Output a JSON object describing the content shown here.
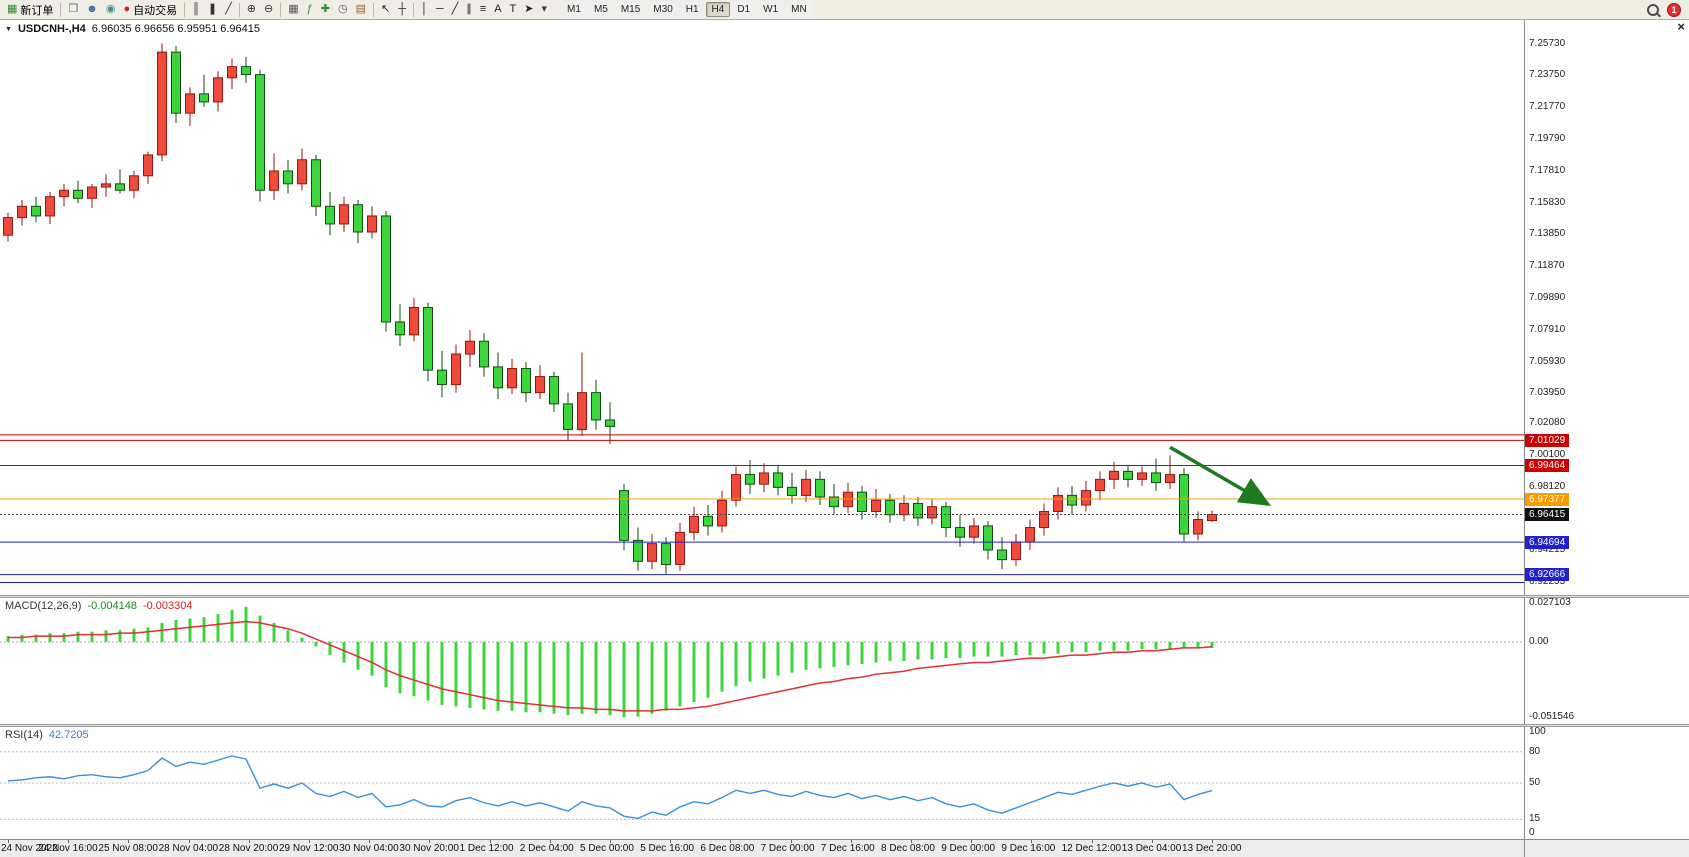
{
  "toolbar": {
    "items": [
      {
        "name": "new-order-button",
        "icon": "new-order-icon",
        "glyph": "▦",
        "color": "#2e8b2e",
        "label": "新订单"
      },
      {
        "type": "sep"
      },
      {
        "name": "chart-window-button",
        "icon": "chart-window-icon",
        "glyph": "❐",
        "color": "#4a6fa5"
      },
      {
        "name": "profiles-button",
        "icon": "profiles-icon",
        "glyph": "☻",
        "color": "#3a6ea5"
      },
      {
        "name": "data-window-button",
        "icon": "data-window-icon",
        "glyph": "◉",
        "color": "#3a8e8e"
      },
      {
        "name": "auto-trading-button",
        "icon": "auto-trading-icon",
        "glyph": "●",
        "color": "#cc2222",
        "label": "自动交易"
      },
      {
        "type": "sep"
      },
      {
        "name": "bar-chart-button",
        "icon": "bar-chart-icon",
        "glyph": "║",
        "color": "#333333"
      },
      {
        "name": "candlestick-chart-button",
        "icon": "candlestick-chart-icon",
        "glyph": "❚",
        "color": "#333333"
      },
      {
        "name": "line-chart-button",
        "icon": "line-chart-icon",
        "glyph": "╱",
        "color": "#333333"
      },
      {
        "type": "sep"
      },
      {
        "name": "zoom-in-button",
        "icon": "zoom-in-icon",
        "glyph": "⊕",
        "color": "#333333"
      },
      {
        "name": "zoom-out-button",
        "icon": "zoom-out-icon",
        "glyph": "⊖",
        "color": "#333333"
      },
      {
        "type": "sep"
      },
      {
        "name": "tile-windows-button",
        "icon": "tile-windows-icon",
        "glyph": "▦",
        "color": "#555555"
      },
      {
        "name": "indicators-button",
        "icon": "indicators-icon",
        "glyph": "ƒ",
        "color": "#2e8b2e"
      },
      {
        "name": "add-indicator-button",
        "icon": "add-indicator-icon",
        "glyph": "✚",
        "color": "#2e8b2e"
      },
      {
        "name": "periods-button",
        "icon": "periods-icon",
        "glyph": "◷",
        "color": "#555555"
      },
      {
        "name": "templates-button",
        "icon": "templates-icon",
        "glyph": "▤",
        "color": "#996633"
      },
      {
        "type": "sep"
      },
      {
        "name": "cursor-button",
        "icon": "cursor-icon",
        "glyph": "↖",
        "color": "#222222"
      },
      {
        "name": "crosshair-button",
        "icon": "crosshair-icon",
        "glyph": "┼",
        "color": "#222222"
      },
      {
        "type": "sep"
      },
      {
        "name": "vertical-line-button",
        "icon": "vertical-line-icon",
        "glyph": "│",
        "color": "#222222"
      },
      {
        "name": "horizontal-line-button",
        "icon": "horizontal-line-icon",
        "glyph": "─",
        "color": "#222222"
      },
      {
        "name": "trendline-button",
        "icon": "trendline-icon",
        "glyph": "╱",
        "color": "#222222"
      },
      {
        "name": "channel-button",
        "icon": "channel-icon",
        "glyph": "∥",
        "color": "#222222"
      },
      {
        "name": "fibonacci-button",
        "icon": "fibonacci-icon",
        "glyph": "≡",
        "color": "#222222"
      },
      {
        "name": "text-button",
        "icon": "text-icon",
        "glyph": "A",
        "color": "#222222"
      },
      {
        "name": "text-label-button",
        "icon": "text-label-icon",
        "glyph": "T",
        "color": "#222222"
      },
      {
        "name": "arrows-tool-button",
        "icon": "arrows-tool-icon",
        "glyph": "➤",
        "color": "#222222"
      },
      {
        "name": "objects-dropdown-button",
        "icon": "chevron-down-icon",
        "glyph": "▾",
        "color": "#444444"
      }
    ],
    "timeframes": [
      "M1",
      "M5",
      "M15",
      "M30",
      "H1",
      "H4",
      "D1",
      "W1",
      "MN"
    ],
    "active_timeframe": "H4",
    "notification_count": "1"
  },
  "chart": {
    "title_symbol": "USDCNH-,H4",
    "title_ohlc": "6.96035 6.96656 6.95951 6.96415",
    "dropdown_glyph": "▼",
    "close_glyph": "×"
  },
  "chart_data": {
    "type": "candlestick",
    "symbol": "USDCNH-",
    "period": "H4",
    "ohlc_display": {
      "open": "6.96035",
      "high": "6.96656",
      "low": "6.95951",
      "close": "6.96415"
    },
    "up_color": "#ef4a3c",
    "down_color": "#3cd63c",
    "price_axis": {
      "min": 6.914,
      "max": 7.272,
      "ticks": [
        7.2573,
        7.2375,
        7.2177,
        7.1979,
        7.1781,
        7.1583,
        7.1385,
        7.1187,
        7.0989,
        7.0791,
        7.0593,
        7.0395,
        7.0208,
        7.001,
        6.9812,
        6.94215,
        6.92235
      ]
    },
    "levels": [
      {
        "price": 7.0137,
        "color": "#cc0000",
        "label": null
      },
      {
        "price": 7.01029,
        "color": "#cc0000",
        "label": "7.01029"
      },
      {
        "price": 6.99464,
        "color": "#cc0000",
        "label": "6.99464"
      },
      {
        "price": 6.97377,
        "color": "#ff9900",
        "label": "6.97377"
      },
      {
        "price": 6.94694,
        "color": "#2222cc",
        "label": "6.94694"
      },
      {
        "price": 6.92666,
        "color": "#2222cc",
        "label": "6.92666"
      },
      {
        "price": 6.9218,
        "color": "#2222cc",
        "label": null
      }
    ],
    "current_price": {
      "value": 6.96415,
      "label": "6.96415",
      "bg": "#111111"
    },
    "arrow": {
      "from_index": 83,
      "from_price": 7.006,
      "to_index": 90,
      "to_price": 6.9705,
      "color": "#1e7a1e"
    },
    "time_labels": [
      "24 Nov 2022",
      "24 Nov 16:00",
      "25 Nov 08:00",
      "28 Nov 04:00",
      "28 Nov 20:00",
      "29 Nov 12:00",
      "30 Nov 04:00",
      "30 Nov 20:00",
      "1 Dec 12:00",
      "2 Dec 04:00",
      "5 Dec 00:00",
      "5 Dec 16:00",
      "6 Dec 08:00",
      "7 Dec 00:00",
      "7 Dec 16:00",
      "8 Dec 08:00",
      "9 Dec 00:00",
      "9 Dec 16:00",
      "12 Dec 12:00",
      "13 Dec 04:00",
      "13 Dec 20:00"
    ],
    "candles": [
      [
        7.138,
        7.152,
        7.134,
        7.149
      ],
      [
        7.149,
        7.16,
        7.144,
        7.156
      ],
      [
        7.156,
        7.162,
        7.146,
        7.15
      ],
      [
        7.15,
        7.165,
        7.145,
        7.162
      ],
      [
        7.162,
        7.17,
        7.156,
        7.166
      ],
      [
        7.166,
        7.172,
        7.158,
        7.161
      ],
      [
        7.161,
        7.17,
        7.155,
        7.168
      ],
      [
        7.168,
        7.176,
        7.162,
        7.17
      ],
      [
        7.17,
        7.179,
        7.164,
        7.166
      ],
      [
        7.166,
        7.178,
        7.161,
        7.175
      ],
      [
        7.175,
        7.19,
        7.17,
        7.188
      ],
      [
        7.188,
        7.2573,
        7.184,
        7.252
      ],
      [
        7.252,
        7.256,
        7.208,
        7.214
      ],
      [
        7.214,
        7.23,
        7.206,
        7.226
      ],
      [
        7.226,
        7.238,
        7.218,
        7.221
      ],
      [
        7.221,
        7.24,
        7.215,
        7.236
      ],
      [
        7.236,
        7.248,
        7.229,
        7.243
      ],
      [
        7.243,
        7.249,
        7.233,
        7.238
      ],
      [
        7.238,
        7.241,
        7.159,
        7.166
      ],
      [
        7.166,
        7.189,
        7.16,
        7.178
      ],
      [
        7.178,
        7.185,
        7.164,
        7.17
      ],
      [
        7.17,
        7.192,
        7.166,
        7.185
      ],
      [
        7.185,
        7.188,
        7.15,
        7.156
      ],
      [
        7.156,
        7.165,
        7.138,
        7.145
      ],
      [
        7.145,
        7.162,
        7.14,
        7.157
      ],
      [
        7.157,
        7.16,
        7.133,
        7.14
      ],
      [
        7.14,
        7.156,
        7.136,
        7.15
      ],
      [
        7.15,
        7.153,
        7.078,
        7.084
      ],
      [
        7.084,
        7.095,
        7.069,
        7.076
      ],
      [
        7.076,
        7.099,
        7.072,
        7.093
      ],
      [
        7.093,
        7.096,
        7.047,
        7.054
      ],
      [
        7.054,
        7.066,
        7.037,
        7.045
      ],
      [
        7.045,
        7.07,
        7.04,
        7.064
      ],
      [
        7.064,
        7.079,
        7.056,
        7.072
      ],
      [
        7.072,
        7.077,
        7.05,
        7.056
      ],
      [
        7.056,
        7.065,
        7.036,
        7.043
      ],
      [
        7.043,
        7.061,
        7.039,
        7.055
      ],
      [
        7.055,
        7.059,
        7.034,
        7.04
      ],
      [
        7.04,
        7.057,
        7.036,
        7.05
      ],
      [
        7.05,
        7.053,
        7.028,
        7.033
      ],
      [
        7.033,
        7.04,
        7.01,
        7.017
      ],
      [
        7.017,
        7.065,
        7.013,
        7.04
      ],
      [
        7.04,
        7.048,
        7.017,
        7.023
      ],
      [
        7.023,
        7.034,
        7.008,
        7.019
      ],
      [
        6.979,
        6.983,
        6.942,
        6.948
      ],
      [
        6.948,
        6.956,
        6.929,
        6.935
      ],
      [
        6.935,
        6.952,
        6.93,
        6.946
      ],
      [
        6.946,
        6.95,
        6.927,
        6.933
      ],
      [
        6.933,
        6.959,
        6.929,
        6.953
      ],
      [
        6.953,
        6.969,
        6.948,
        6.963
      ],
      [
        6.963,
        6.97,
        6.951,
        6.957
      ],
      [
        6.957,
        6.979,
        6.953,
        6.973
      ],
      [
        6.973,
        6.994,
        6.969,
        6.989
      ],
      [
        6.989,
        6.998,
        6.977,
        6.983
      ],
      [
        6.983,
        6.996,
        6.978,
        6.99
      ],
      [
        6.99,
        6.995,
        6.976,
        6.981
      ],
      [
        6.981,
        6.99,
        6.971,
        6.976
      ],
      [
        6.976,
        6.992,
        6.972,
        6.986
      ],
      [
        6.986,
        6.991,
        6.97,
        6.975
      ],
      [
        6.975,
        6.983,
        6.964,
        6.969
      ],
      [
        6.969,
        6.984,
        6.965,
        6.978
      ],
      [
        6.978,
        6.982,
        6.961,
        6.966
      ],
      [
        6.966,
        6.98,
        6.962,
        6.973
      ],
      [
        6.973,
        6.977,
        6.959,
        6.964
      ],
      [
        6.964,
        6.976,
        6.96,
        6.971
      ],
      [
        6.971,
        6.975,
        6.957,
        6.962
      ],
      [
        6.962,
        6.974,
        6.958,
        6.969
      ],
      [
        6.969,
        6.972,
        6.95,
        6.956
      ],
      [
        6.956,
        6.964,
        6.944,
        6.95
      ],
      [
        6.95,
        6.962,
        6.946,
        6.957
      ],
      [
        6.957,
        6.96,
        6.936,
        6.942
      ],
      [
        6.942,
        6.95,
        6.93,
        6.936
      ],
      [
        6.936,
        6.952,
        6.932,
        6.947
      ],
      [
        6.947,
        6.961,
        6.942,
        6.956
      ],
      [
        6.956,
        6.971,
        6.951,
        6.966
      ],
      [
        6.966,
        6.981,
        6.961,
        6.976
      ],
      [
        6.976,
        6.982,
        6.964,
        6.97
      ],
      [
        6.97,
        6.985,
        6.966,
        6.979
      ],
      [
        6.979,
        6.991,
        6.973,
        6.986
      ],
      [
        6.986,
        6.997,
        6.98,
        6.991
      ],
      [
        6.991,
        6.995,
        6.981,
        6.986
      ],
      [
        6.986,
        6.994,
        6.982,
        6.99
      ],
      [
        6.99,
        6.999,
        6.979,
        6.984
      ],
      [
        6.984,
        7.001,
        6.98,
        6.989
      ],
      [
        6.989,
        6.993,
        6.947,
        6.952
      ],
      [
        6.952,
        6.966,
        6.948,
        6.961
      ],
      [
        6.96035,
        6.96656,
        6.95951,
        6.96415
      ]
    ],
    "macd": {
      "label": "MACD(12,26,9)",
      "value_main": "-0.004148",
      "value_signal": "-0.003304",
      "histogram_color": "#3cd63c",
      "signal_color": "#e03030",
      "axis": {
        "max": 0.03,
        "min": -0.056,
        "ticks": [
          {
            "v": 0.027103,
            "t": "0.027103"
          },
          {
            "v": 0,
            "t": "0.00"
          },
          {
            "v": -0.051546,
            "t": "-0.051546"
          }
        ]
      },
      "histogram": [
        0.004,
        0.005,
        0.005,
        0.006,
        0.006,
        0.007,
        0.007,
        0.008,
        0.008,
        0.009,
        0.01,
        0.013,
        0.015,
        0.016,
        0.017,
        0.019,
        0.022,
        0.024,
        0.018,
        0.013,
        0.008,
        0.003,
        -0.003,
        -0.009,
        -0.014,
        -0.019,
        -0.023,
        -0.031,
        -0.035,
        -0.037,
        -0.04,
        -0.043,
        -0.044,
        -0.045,
        -0.046,
        -0.047,
        -0.047,
        -0.048,
        -0.048,
        -0.049,
        -0.05,
        -0.049,
        -0.049,
        -0.05,
        -0.0515,
        -0.051,
        -0.049,
        -0.047,
        -0.044,
        -0.041,
        -0.038,
        -0.034,
        -0.03,
        -0.027,
        -0.025,
        -0.023,
        -0.021,
        -0.019,
        -0.018,
        -0.017,
        -0.016,
        -0.015,
        -0.014,
        -0.013,
        -0.013,
        -0.012,
        -0.012,
        -0.011,
        -0.011,
        -0.01,
        -0.01,
        -0.01,
        -0.009,
        -0.009,
        -0.008,
        -0.008,
        -0.007,
        -0.007,
        -0.006,
        -0.006,
        -0.006,
        -0.005,
        -0.005,
        -0.005,
        -0.004,
        -0.004,
        -0.004148
      ],
      "signal": [
        0.003,
        0.003,
        0.004,
        0.004,
        0.004,
        0.005,
        0.005,
        0.005,
        0.006,
        0.006,
        0.007,
        0.008,
        0.009,
        0.01,
        0.011,
        0.012,
        0.013,
        0.014,
        0.013,
        0.011,
        0.009,
        0.006,
        0.002,
        -0.002,
        -0.006,
        -0.01,
        -0.014,
        -0.019,
        -0.023,
        -0.026,
        -0.029,
        -0.032,
        -0.034,
        -0.036,
        -0.038,
        -0.04,
        -0.041,
        -0.042,
        -0.043,
        -0.044,
        -0.045,
        -0.045,
        -0.046,
        -0.046,
        -0.047,
        -0.047,
        -0.047,
        -0.046,
        -0.046,
        -0.045,
        -0.044,
        -0.042,
        -0.04,
        -0.038,
        -0.036,
        -0.034,
        -0.032,
        -0.03,
        -0.028,
        -0.027,
        -0.025,
        -0.024,
        -0.022,
        -0.021,
        -0.02,
        -0.018,
        -0.017,
        -0.016,
        -0.015,
        -0.014,
        -0.014,
        -0.013,
        -0.012,
        -0.011,
        -0.011,
        -0.01,
        -0.009,
        -0.009,
        -0.008,
        -0.007,
        -0.007,
        -0.006,
        -0.006,
        -0.005,
        -0.004,
        -0.004,
        -0.003304
      ]
    },
    "rsi": {
      "label": "RSI(14)",
      "value": "42.7205",
      "line_color": "#3b8fe0",
      "levels": [
        80,
        50,
        15
      ],
      "axis_ticks": [
        {
          "v": 100,
          "t": "100"
        },
        {
          "v": 80,
          "t": "80"
        },
        {
          "v": 50,
          "t": "50"
        },
        {
          "v": 15,
          "t": "15"
        },
        {
          "v": 0,
          "t": "0"
        }
      ],
      "values": [
        52,
        53,
        55,
        56,
        54,
        57,
        58,
        56,
        55,
        58,
        62,
        74,
        66,
        70,
        68,
        72,
        76,
        73,
        45,
        49,
        45,
        50,
        40,
        37,
        42,
        36,
        40,
        27,
        29,
        34,
        28,
        27,
        33,
        36,
        31,
        28,
        32,
        28,
        31,
        27,
        23,
        32,
        28,
        26,
        18,
        16,
        22,
        19,
        27,
        32,
        30,
        36,
        43,
        40,
        43,
        39,
        37,
        42,
        38,
        36,
        40,
        35,
        38,
        34,
        37,
        33,
        36,
        30,
        27,
        30,
        24,
        21,
        26,
        31,
        36,
        41,
        39,
        43,
        47,
        50,
        47,
        50,
        46,
        49,
        34,
        39,
        42.72
      ]
    }
  }
}
